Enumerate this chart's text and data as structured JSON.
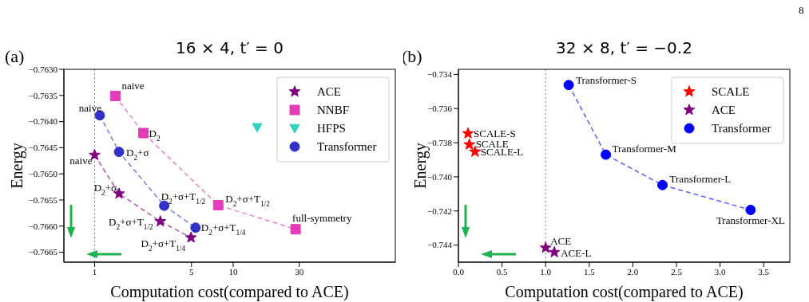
{
  "chart_data": [
    {
      "type": "scatter",
      "title": "16 × 4, t′ = 0",
      "xlabel": "Computation cost(compared to ACE)",
      "ylabel": "Energy",
      "log": "x",
      "legend": "top right",
      "xlim": [
        0.6,
        148
      ],
      "xticks": [
        1,
        5,
        10,
        30
      ],
      "ylim": [
        -0.76669,
        -0.763
      ],
      "yticks": [
        {
          "value": -0.763,
          "label": "−0.7630"
        },
        {
          "value": -0.7635,
          "label": "−0.7635"
        },
        {
          "value": -0.764,
          "label": "−0.7640"
        },
        {
          "value": -0.7645,
          "label": "−0.7645"
        },
        {
          "value": -0.765,
          "label": "−0.7650"
        },
        {
          "value": -0.7655,
          "label": "−0.7655"
        },
        {
          "value": -0.766,
          "label": "−0.7660"
        },
        {
          "value": -0.7665,
          "label": "−0.7665"
        }
      ],
      "ref_lines": [
        {
          "axis": "x",
          "value": 1,
          "color": "#808080",
          "line_style": "dotted"
        }
      ],
      "series": [
        {
          "name": "ACE",
          "type": "line",
          "marker": "star",
          "line_style": "dashed",
          "color": "#800080",
          "x": [
            1.0,
            1.5,
            2.98,
            4.96
          ],
          "values": [
            -0.76464,
            -0.76538,
            -0.76591,
            -0.76622
          ]
        },
        {
          "name": "NNBF",
          "type": "line",
          "marker": "square",
          "line_style": "dashed",
          "color": "#e23cb8",
          "x": [
            1.41,
            2.25,
            7.8,
            28.2
          ],
          "values": [
            -0.76351,
            -0.76422,
            -0.7656,
            -0.76606
          ]
        },
        {
          "name": "HFPS",
          "type": "scatter",
          "marker": "triangle",
          "color": "#2fd3c0",
          "x": [
            14.9
          ],
          "values": [
            -0.76411
          ]
        },
        {
          "name": "Transformer",
          "type": "line",
          "marker": "circle",
          "line_style": "dashed",
          "color": "#3232c8",
          "x": [
            1.09,
            1.5,
            3.18,
            5.35
          ],
          "values": [
            -0.76388,
            -0.76458,
            -0.76561,
            -0.76603
          ]
        }
      ],
      "annotations": [
        "(a)",
        {
          "text": "naive",
          "x": 1.41,
          "y": -0.76351
        },
        {
          "text": "D$_{2}$",
          "x": 2.25,
          "y": -0.76422
        },
        {
          "text": "D$_{2}$+σ+T$_{1/2}$",
          "x": 7.8,
          "y": -0.7656
        },
        {
          "text": "full-symmetry",
          "x": 28.2,
          "y": -0.76606
        },
        {
          "text": "naive",
          "x": 1.09,
          "y": -0.76388
        },
        {
          "text": "D$_{2}$+σ",
          "x": 1.5,
          "y": -0.76458
        },
        {
          "text": "D$_{2}$+σ+T$_{1/2}$",
          "x": 3.18,
          "y": -0.76561
        },
        {
          "text": "D$_{2}$+σ+T$_{1/4}$",
          "x": 5.35,
          "y": -0.76603
        },
        {
          "text": "naive",
          "x": 1.0,
          "y": -0.76464
        },
        {
          "text": "D$_{2}$+σ",
          "x": 1.5,
          "y": -0.76538
        },
        {
          "text": "D$_{2}$+σ+T$_{1/2}$",
          "x": 2.98,
          "y": -0.76591
        },
        {
          "text": "D$_{2}$+σ+T$_{1/4}$",
          "x": 4.96,
          "y": -0.76622
        }
      ]
    },
    {
      "type": "scatter",
      "title": "32 × 8, t′ = −0.2",
      "xlabel": "Computation cost(compared to ACE)",
      "ylabel": "Energy",
      "legend": "top right",
      "xlim": [
        0,
        3.8
      ],
      "xticks": [
        {
          "value": 0,
          "label": "0.0"
        },
        {
          "value": 0.5,
          "label": "0.5"
        },
        {
          "value": 1,
          "label": "1.0"
        },
        {
          "value": 1.5,
          "label": "1.5"
        },
        {
          "value": 2,
          "label": "2.0"
        },
        {
          "value": 2.5,
          "label": "2.5"
        },
        {
          "value": 3,
          "label": "3.0"
        },
        {
          "value": 3.5,
          "label": "3.5"
        }
      ],
      "ylim": [
        -0.745,
        -0.7337
      ],
      "yticks": [
        {
          "value": -0.734,
          "label": "−0.734"
        },
        {
          "value": -0.736,
          "label": "−0.736"
        },
        {
          "value": -0.738,
          "label": "−0.738"
        },
        {
          "value": -0.74,
          "label": "−0.740"
        },
        {
          "value": -0.742,
          "label": "−0.742"
        },
        {
          "value": -0.744,
          "label": "−0.744"
        }
      ],
      "ref_lines": [
        {
          "axis": "x",
          "value": 1,
          "color": "#808080",
          "line_style": "dotted"
        }
      ],
      "series": [
        {
          "name": "SCALE",
          "type": "scatter",
          "marker": "star",
          "color": "#ff0000",
          "x": [
            0.11,
            0.125,
            0.19
          ],
          "values": [
            -0.73746,
            -0.73811,
            -0.73853
          ]
        },
        {
          "name": "ACE",
          "type": "scatter",
          "marker": "star",
          "color": "#800080",
          "x": [
            1.0,
            1.1
          ],
          "values": [
            -0.74416,
            -0.74442
          ]
        },
        {
          "name": "Transformer",
          "type": "line",
          "marker": "circle",
          "line_style": "dashed",
          "color": "#0000ff",
          "x": [
            1.265,
            1.69,
            2.34,
            3.35
          ],
          "values": [
            -0.73462,
            -0.7387,
            -0.74048,
            -0.74194
          ]
        }
      ],
      "annotations": [
        "(b)",
        "8",
        {
          "text": "SCALE-S",
          "x": 0.11,
          "y": -0.73746
        },
        {
          "text": "SCALE",
          "x": 0.125,
          "y": -0.73811
        },
        {
          "text": "SCALE-L",
          "x": 0.19,
          "y": -0.73853
        },
        {
          "text": "ACE",
          "x": 1.0,
          "y": -0.74416
        },
        {
          "text": "ACE-L",
          "x": 1.1,
          "y": -0.74442
        },
        {
          "text": "Transformer-S",
          "x": 1.265,
          "y": -0.73462
        },
        {
          "text": "Transformer-M",
          "x": 1.69,
          "y": -0.7387
        },
        {
          "text": "Transformer-L",
          "x": 2.34,
          "y": -0.74048
        },
        {
          "text": "Transformer-XL",
          "x": 3.35,
          "y": -0.74194
        }
      ]
    }
  ]
}
